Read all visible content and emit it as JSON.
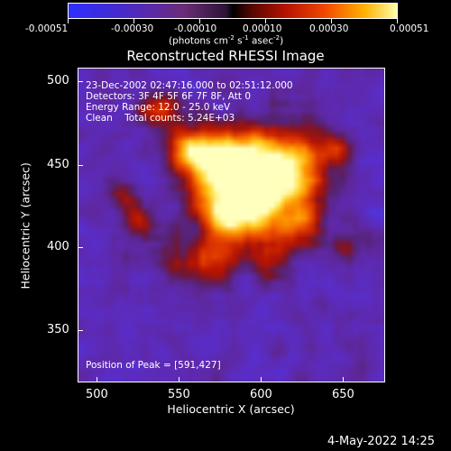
{
  "colorbar": {
    "tick_labels": [
      "-0.00051",
      "-0.00030",
      "-0.00010",
      "0.00010",
      "0.00030",
      "0.00051"
    ],
    "units": "(photons cm",
    "units_sup1": "-2",
    "units_mid": " s",
    "units_sup2": "-1",
    "units_mid2": " asec",
    "units_sup3": "-2",
    "units_end": ")"
  },
  "title": "Reconstructed RHESSI Image",
  "info": {
    "line1": "23-Dec-2002 02:47:16.000 to 02:51:12.000",
    "line2": "Detectors: 3F 4F 5F 6F 7F 8F, Att 0",
    "line3": "Energy Range: 12.0 - 25.0 keV",
    "line4": "Clean    Total counts: 5.24E+03",
    "peak": "Position of Peak = [591,427]"
  },
  "axes": {
    "xlabel": "Heliocentric X (arcsec)",
    "ylabel": "Heliocentric Y (arcsec)",
    "xticks": [
      "500",
      "550",
      "600",
      "650"
    ],
    "yticks": [
      "500",
      "450",
      "400",
      "350"
    ]
  },
  "footer": {
    "date": "4-May-2022 14:25"
  }
}
